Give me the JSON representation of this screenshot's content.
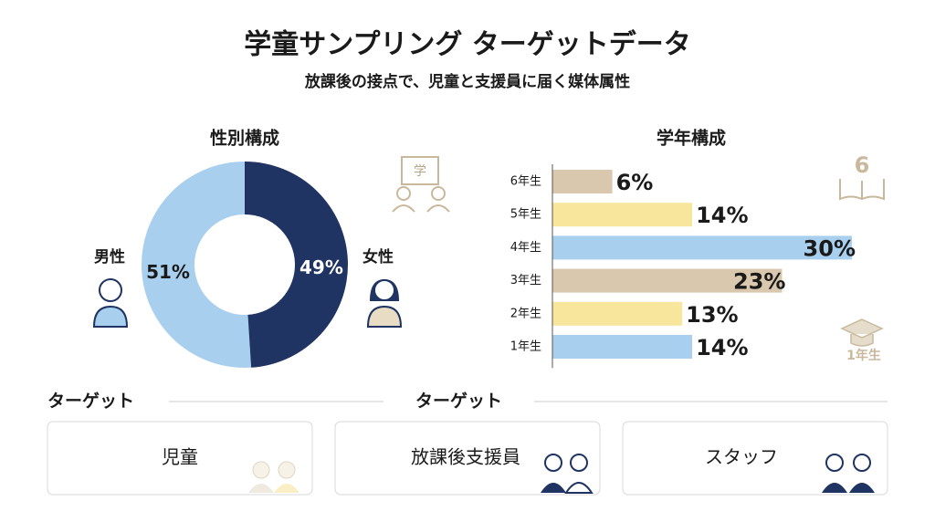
{
  "header": {
    "title": "学童サンプリング ターゲットデータ",
    "subtitle": "放課後の接点で、児童と支援員に届く媒体属性"
  },
  "chart_data": [
    {
      "type": "pie",
      "donut": true,
      "title": "性別構成",
      "categories": [
        "男性",
        "女性"
      ],
      "values": [
        51,
        49
      ],
      "value_labels": [
        "51%",
        "49%"
      ],
      "colors": [
        "#a9cfee",
        "#1f3462"
      ]
    },
    {
      "type": "bar",
      "orientation": "horizontal",
      "title": "学年構成",
      "categories": [
        "6年生",
        "5年生",
        "4年生",
        "3年生",
        "2年生",
        "1年生"
      ],
      "values": [
        6,
        14,
        30,
        23,
        13,
        14
      ],
      "value_labels": [
        "6%",
        "14%",
        "30%",
        "23%",
        "13%",
        "14%"
      ],
      "colors": [
        "#dac8ae",
        "#f8e69d",
        "#a9cfee",
        "#dac8ae",
        "#f8e69d",
        "#a9cfee"
      ]
    }
  ],
  "icon_labels": {
    "board": "学",
    "book": "6",
    "cap": "1年生"
  },
  "targets": {
    "headings": [
      "ターゲット",
      "ターゲット"
    ],
    "cards": [
      "児童",
      "放課後支援員",
      "スタッフ"
    ]
  }
}
